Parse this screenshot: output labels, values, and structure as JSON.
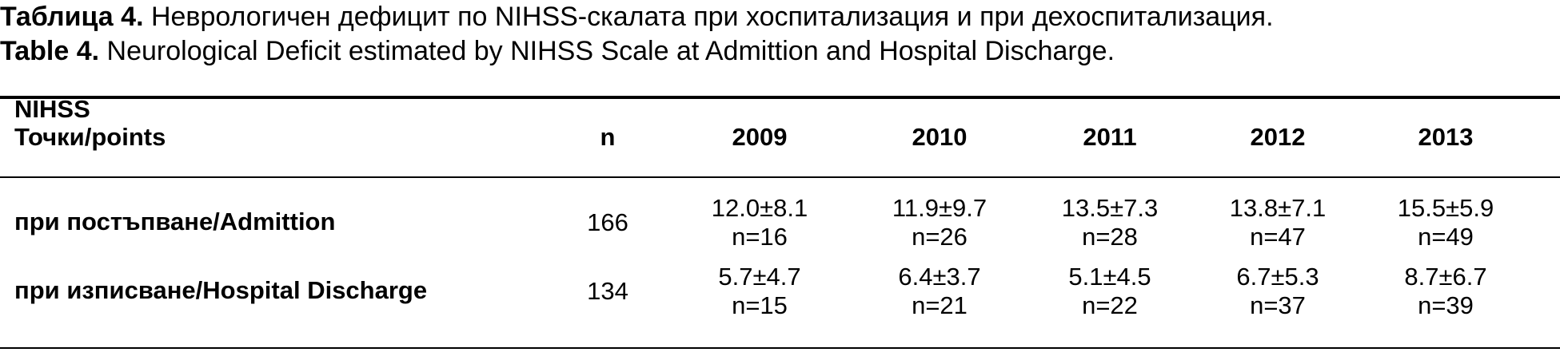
{
  "caption": {
    "bg_label": "Таблица 4.",
    "bg_text": " Неврологичен дефицит по NIHSS-скалата при хоспитализация и при дехоспитализация.",
    "en_label": "Table 4.",
    "en_text": " Neurological Deficit estimated by NIHSS Scale at Admittion and Hospital Discharge."
  },
  "table": {
    "header": {
      "nihss_line1": "NIHSS",
      "nihss_line2": "Точки/points",
      "n": "n",
      "years": [
        "2009",
        "2010",
        "2011",
        "2012",
        "2013"
      ]
    },
    "rows": [
      {
        "label": "при постъпване/Admittion",
        "n": "166",
        "cells": [
          {
            "value": "12.0±8.1",
            "count": "n=16"
          },
          {
            "value": "11.9±9.7",
            "count": "n=26"
          },
          {
            "value": "13.5±7.3",
            "count": "n=28"
          },
          {
            "value": "13.8±7.1",
            "count": "n=47"
          },
          {
            "value": "15.5±5.9",
            "count": "n=49"
          }
        ]
      },
      {
        "label": "при изписване/Hospital Discharge",
        "n": "134",
        "cells": [
          {
            "value": "5.7±4.7",
            "count": "n=15"
          },
          {
            "value": "6.4±3.7",
            "count": "n=21"
          },
          {
            "value": "5.1±4.5",
            "count": "n=22"
          },
          {
            "value": "6.7±5.3",
            "count": "n=37"
          },
          {
            "value": "8.7±6.7",
            "count": "n=39"
          }
        ]
      }
    ]
  }
}
